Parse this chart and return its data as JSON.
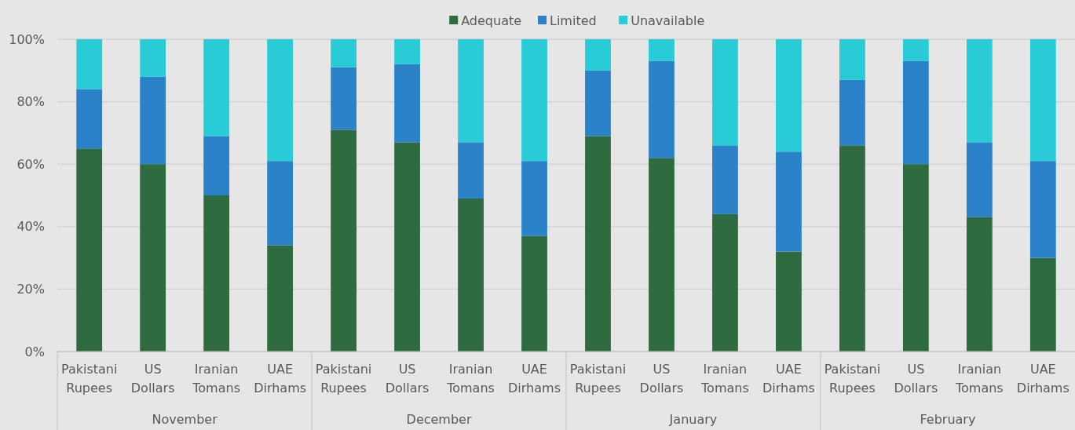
{
  "chart_data": {
    "type": "bar",
    "stacked": true,
    "categories": [
      "Pakistani Rupees",
      "US Dollars",
      "Iranian Tomans",
      "UAE Dirhams",
      "Pakistani Rupees",
      "US Dollars",
      "Iranian Tomans",
      "UAE Dirhams",
      "Pakistani Rupees",
      "US Dollars",
      "Iranian Tomans",
      "UAE Dirhams",
      "Pakistani Rupees",
      "US Dollars",
      "Iranian Tomans",
      "UAE Dirhams"
    ],
    "series": [
      {
        "name": "Adequate",
        "color": "#2e6b3f",
        "values": [
          65,
          60,
          50,
          34,
          71,
          67,
          49,
          37,
          69,
          62,
          44,
          32,
          66,
          60,
          43,
          30
        ]
      },
      {
        "name": "Limited",
        "color": "#2a83c8",
        "values": [
          19,
          28,
          19,
          27,
          20,
          25,
          18,
          24,
          21,
          31,
          22,
          32,
          21,
          33,
          24,
          31
        ]
      },
      {
        "name": "Unavailable",
        "color": "#29ccd6",
        "values": [
          16,
          12,
          31,
          39,
          9,
          8,
          33,
          39,
          10,
          7,
          34,
          36,
          13,
          7,
          33,
          39
        ]
      }
    ],
    "ylim": [
      0,
      100
    ],
    "yticks": [
      {
        "value": 0,
        "label": "0%"
      },
      {
        "value": 20,
        "label": "20%"
      },
      {
        "value": 40,
        "label": "40%"
      },
      {
        "value": 60,
        "label": "60%"
      },
      {
        "value": 80,
        "label": "80%"
      },
      {
        "value": 100,
        "label": "100%"
      }
    ],
    "grid": "y",
    "legend": "top",
    "annotations": [
      "November",
      "December",
      "January",
      "February"
    ]
  }
}
